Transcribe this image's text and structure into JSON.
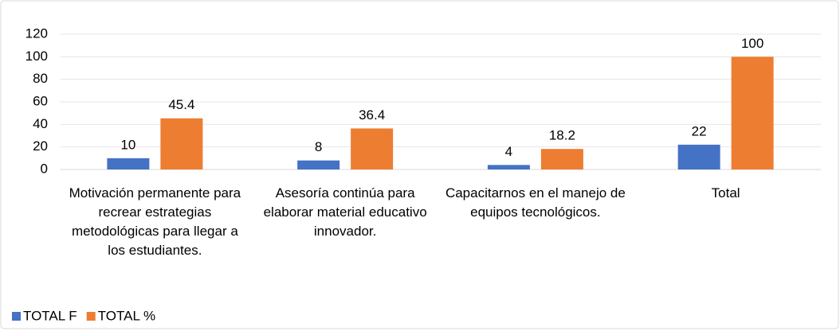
{
  "chart_data": {
    "type": "bar",
    "categories": [
      "Motivación permanente para recrear estrategias metodológicas para llegar a los estudiantes.",
      "Asesoría continúa para elaborar material educativo innovador.",
      "Capacitarnos en el manejo de equipos tecnológicos.",
      "Total"
    ],
    "series": [
      {
        "name": "TOTAL F",
        "color": "#4472c4",
        "values": [
          10,
          8,
          4,
          22
        ]
      },
      {
        "name": "TOTAL %",
        "color": "#ed7d31",
        "values": [
          45.4,
          36.4,
          18.2,
          100
        ]
      }
    ],
    "ylim": [
      0,
      120
    ],
    "yticks": [
      0,
      20,
      40,
      60,
      80,
      100,
      120
    ],
    "grid": true,
    "legend": "bottom-left"
  }
}
